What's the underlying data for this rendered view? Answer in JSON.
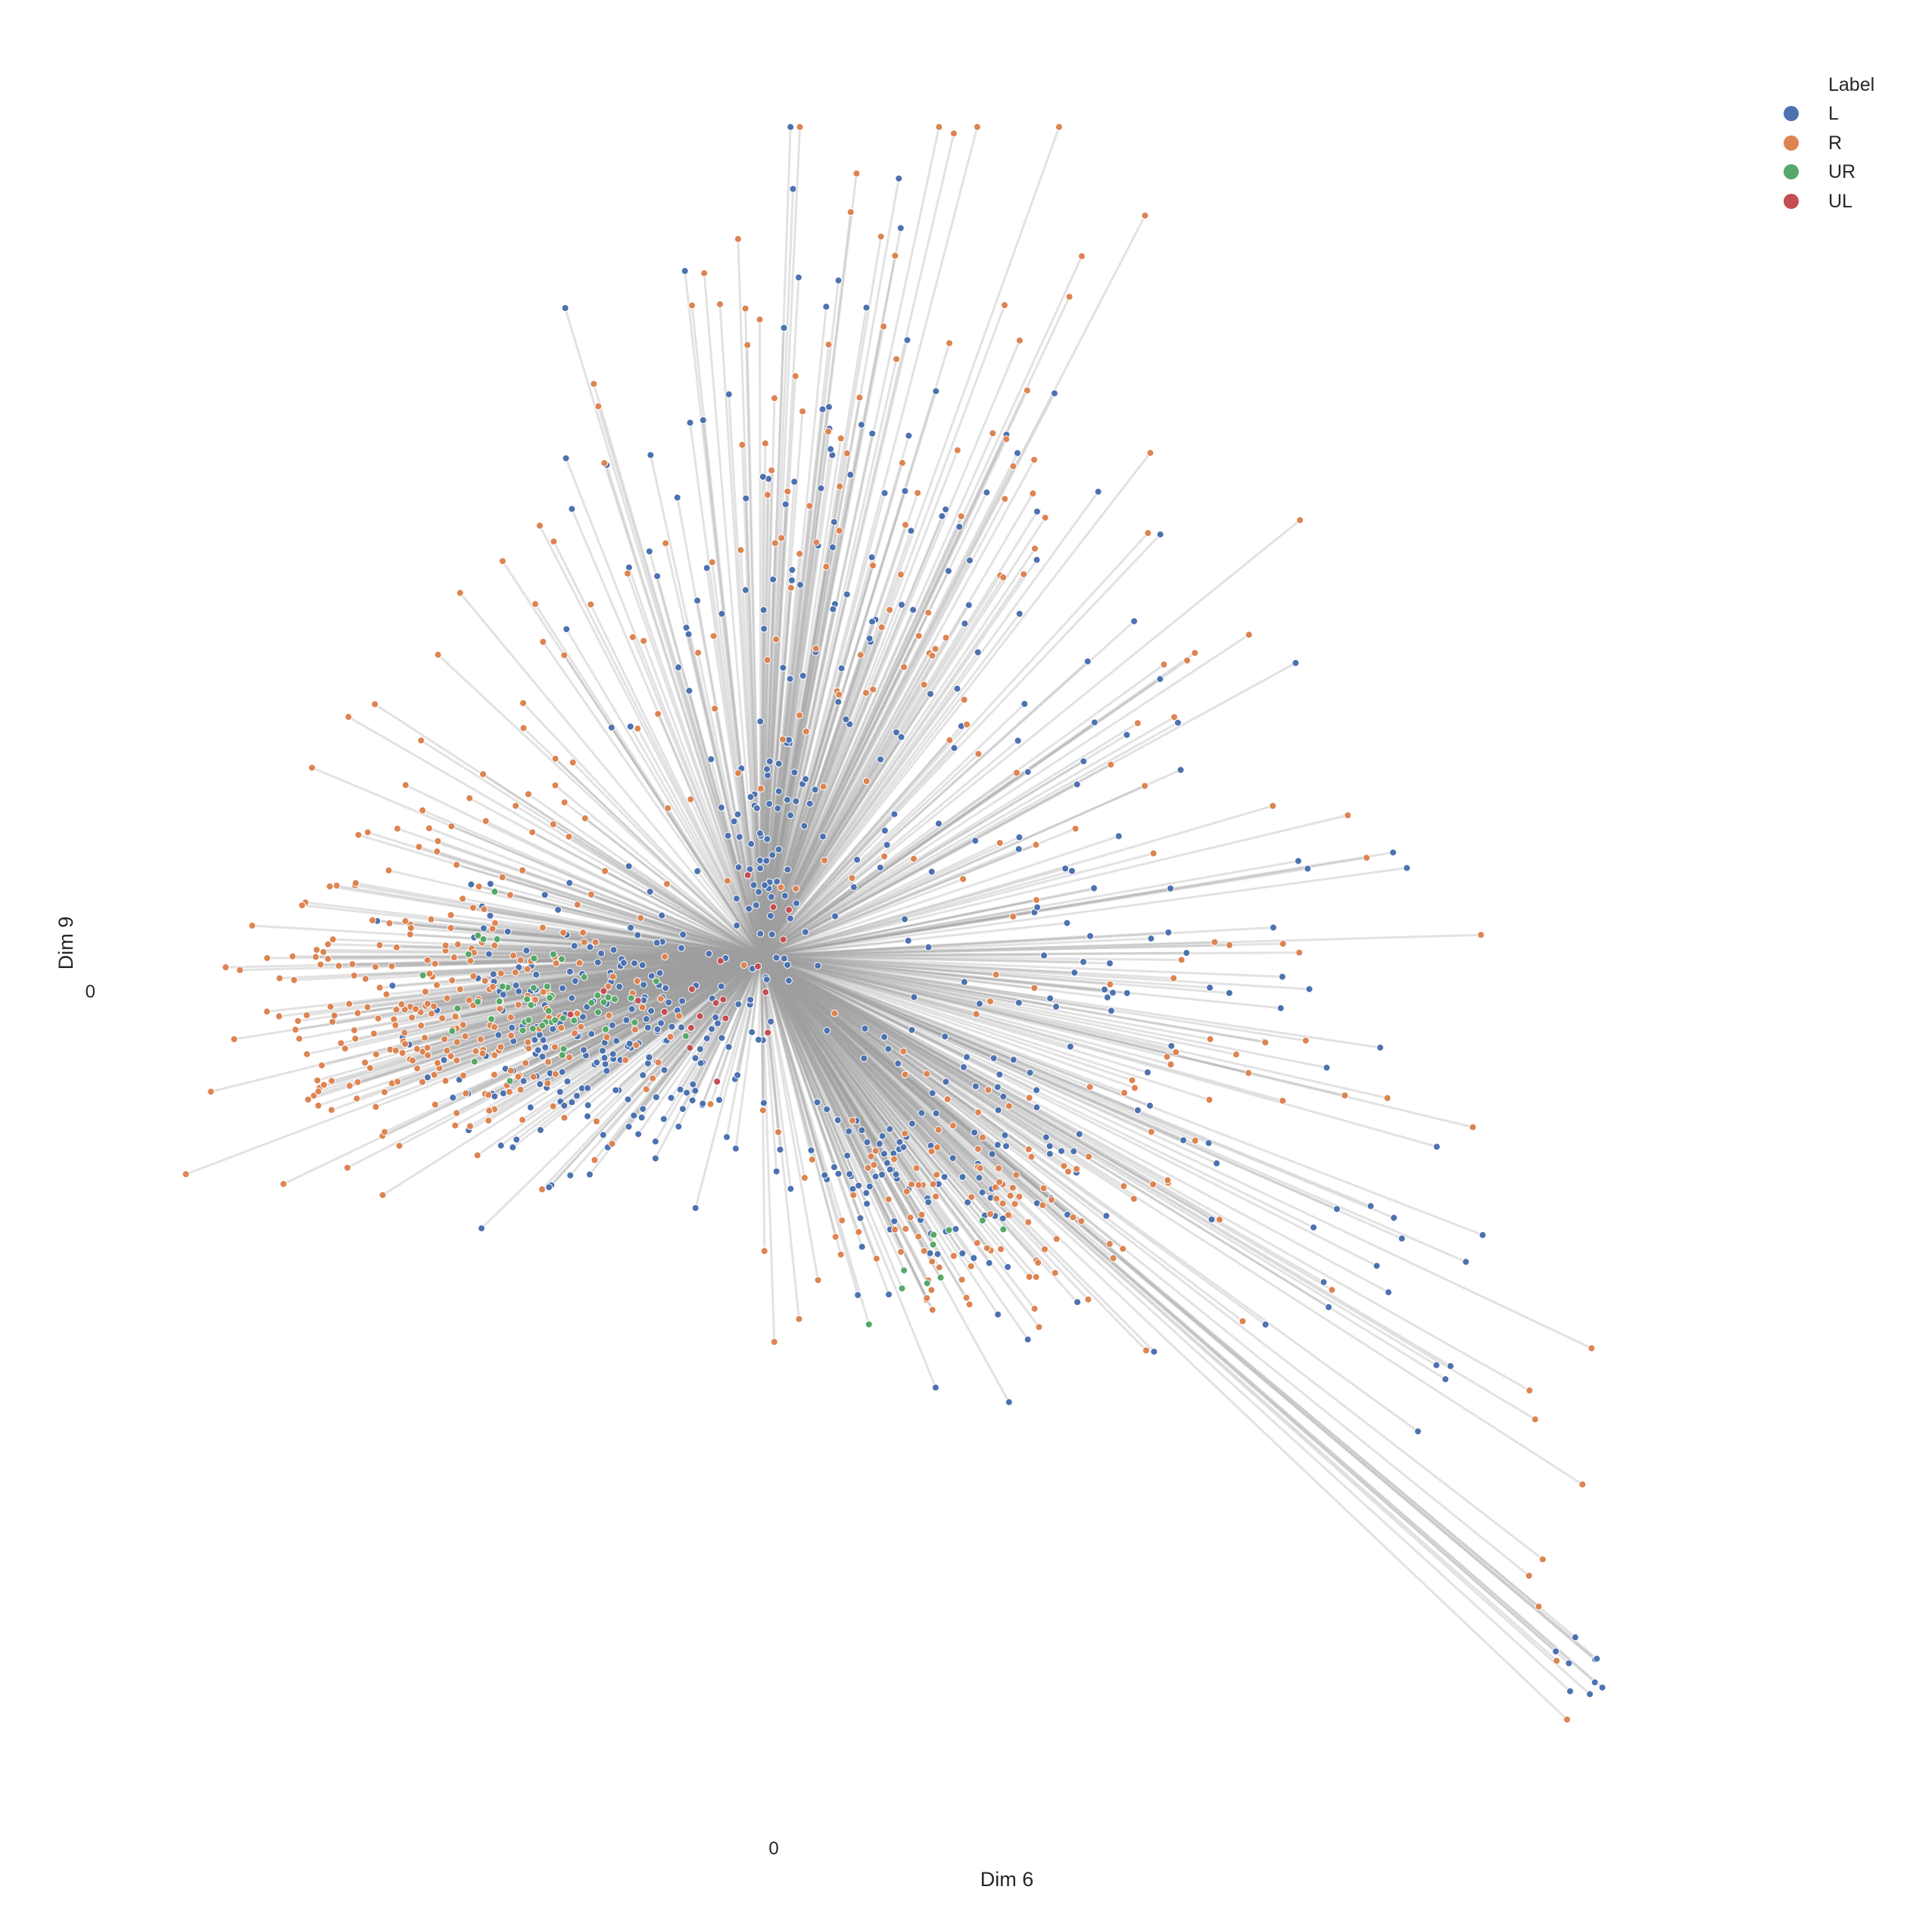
{
  "chart_data": {
    "type": "scatter",
    "title": "",
    "xlabel": "Dim 6",
    "ylabel": "Dim 9",
    "xtick_labels": [
      {
        "value": 0,
        "label": "0"
      }
    ],
    "ytick_labels": [
      {
        "value": 0,
        "label": "0"
      }
    ],
    "xlim": [
      -1.0,
      1.85
    ],
    "ylim": [
      -1.3,
      1.25
    ],
    "grid": false,
    "center": {
      "x": 0.0,
      "y": 0.0
    },
    "edges": "every point is connected by a light gray line to the center point (0, 0)",
    "edge_color": "#9e9e9e",
    "legend": {
      "title": "Label",
      "placement": "top-right",
      "entries": [
        {
          "name": "L",
          "color": "#4c72b0"
        },
        {
          "name": "R",
          "color": "#dd8452"
        },
        {
          "name": "UR",
          "color": "#55a868"
        },
        {
          "name": "UL",
          "color": "#c44e52"
        }
      ]
    },
    "clusters": [
      {
        "name": "L",
        "color": "#4c72b0",
        "seed": 11,
        "groups": [
          {
            "cx": -0.28,
            "cy": -0.12,
            "sx": 0.14,
            "sy": 0.1,
            "n": 230
          },
          {
            "cx": 0.3,
            "cy": -0.32,
            "sx": 0.12,
            "sy": 0.09,
            "n": 100
          },
          {
            "cx": 0.12,
            "cy": 0.55,
            "sx": 0.22,
            "sy": 0.3,
            "n": 150
          },
          {
            "cx": 0.6,
            "cy": -0.05,
            "sx": 0.25,
            "sy": 0.28,
            "n": 80
          },
          {
            "cx": 0.0,
            "cy": 0.16,
            "sx": 0.03,
            "sy": 0.1,
            "n": 45
          },
          {
            "cx": 1.41,
            "cy": -1.05,
            "sx": 0.03,
            "sy": 0.03,
            "n": 10
          },
          {
            "cx": 1.1,
            "cy": -0.5,
            "sx": 0.1,
            "sy": 0.15,
            "n": 14
          }
        ]
      },
      {
        "name": "R",
        "color": "#dd8452",
        "seed": 23,
        "groups": [
          {
            "cx": -0.55,
            "cy": -0.1,
            "sx": 0.17,
            "sy": 0.1,
            "n": 260
          },
          {
            "cx": 0.35,
            "cy": -0.4,
            "sx": 0.12,
            "sy": 0.09,
            "n": 100
          },
          {
            "cx": 0.12,
            "cy": 0.6,
            "sx": 0.22,
            "sy": 0.3,
            "n": 130
          },
          {
            "cx": -0.4,
            "cy": 0.25,
            "sx": 0.18,
            "sy": 0.15,
            "n": 50
          },
          {
            "cx": 0.7,
            "cy": -0.1,
            "sx": 0.25,
            "sy": 0.25,
            "n": 60
          },
          {
            "cx": 1.35,
            "cy": -0.85,
            "sx": 0.06,
            "sy": 0.1,
            "n": 8
          }
        ]
      },
      {
        "name": "UR",
        "color": "#55a868",
        "seed": 37,
        "groups": [
          {
            "cx": -0.36,
            "cy": -0.06,
            "sx": 0.08,
            "sy": 0.05,
            "n": 50
          },
          {
            "cx": 0.3,
            "cy": -0.45,
            "sx": 0.06,
            "sy": 0.06,
            "n": 10
          }
        ]
      },
      {
        "name": "UL",
        "color": "#c44e52",
        "seed": 53,
        "groups": [
          {
            "cx": -0.15,
            "cy": -0.1,
            "sx": 0.08,
            "sy": 0.04,
            "n": 14
          },
          {
            "cx": 0.0,
            "cy": 0.05,
            "sx": 0.04,
            "sy": 0.06,
            "n": 6
          }
        ]
      }
    ]
  }
}
